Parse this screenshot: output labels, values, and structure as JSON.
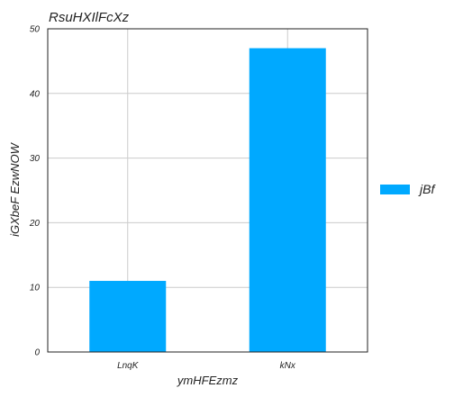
{
  "chart_data": {
    "type": "bar",
    "title": "RsuHXIlFcXz",
    "xlabel": "ymHFEzmz",
    "ylabel": "iGXbeF EzwNOW",
    "categories": [
      "LnqK",
      "kNx"
    ],
    "series": [
      {
        "name": "jBf",
        "values": [
          11,
          47
        ],
        "color": "#00a9ff"
      }
    ],
    "ylim": [
      0,
      50
    ],
    "yticks": [
      0,
      10,
      20,
      30,
      40,
      50
    ],
    "grid": true,
    "legend": "right"
  }
}
